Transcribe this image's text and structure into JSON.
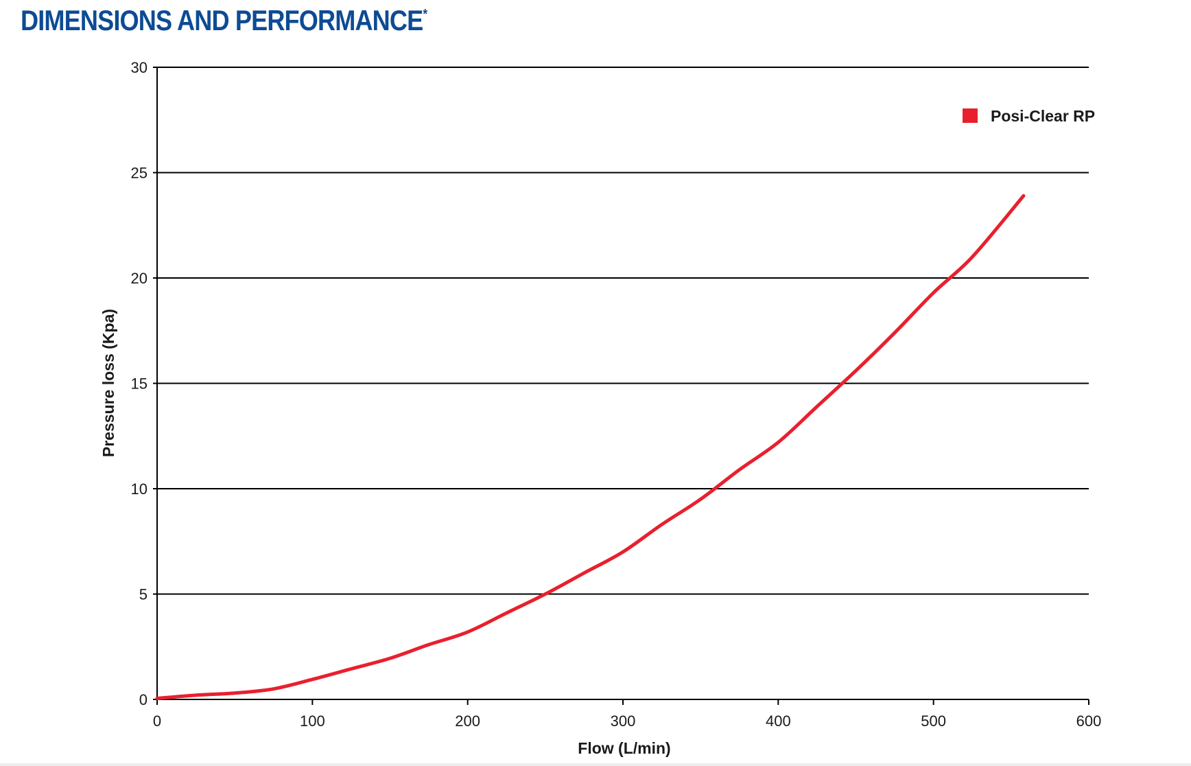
{
  "header": {
    "title": "DIMENSIONS AND PERFORMANCE",
    "title_mark": "*"
  },
  "colors": {
    "heading": "#0d4b94",
    "series": "#e8202e",
    "grid": "#000000"
  },
  "chart_data": {
    "type": "line",
    "xlabel": "Flow (L/min)",
    "ylabel": "Pressure loss (Kpa)",
    "xlim": [
      0,
      600
    ],
    "ylim": [
      0,
      30
    ],
    "xticks": [
      "0",
      "100",
      "200",
      "300",
      "400",
      "500",
      "600"
    ],
    "yticks": [
      "0",
      "5",
      "10",
      "15",
      "20",
      "25",
      "30"
    ],
    "grid": "horizontal",
    "legend_position": "top-right",
    "series": [
      {
        "name": "Posi-Clear RP",
        "color": "#e8202e",
        "x": [
          0,
          25,
          50,
          75,
          100,
          125,
          150,
          175,
          200,
          225,
          250,
          275,
          300,
          325,
          350,
          375,
          400,
          425,
          450,
          475,
          500,
          525,
          558
        ],
        "y": [
          0.05,
          0.2,
          0.3,
          0.5,
          0.95,
          1.45,
          1.95,
          2.6,
          3.2,
          4.1,
          5.0,
          6.0,
          7.0,
          8.3,
          9.5,
          10.9,
          12.2,
          13.9,
          15.6,
          17.4,
          19.3,
          21.0,
          23.9
        ]
      }
    ]
  }
}
